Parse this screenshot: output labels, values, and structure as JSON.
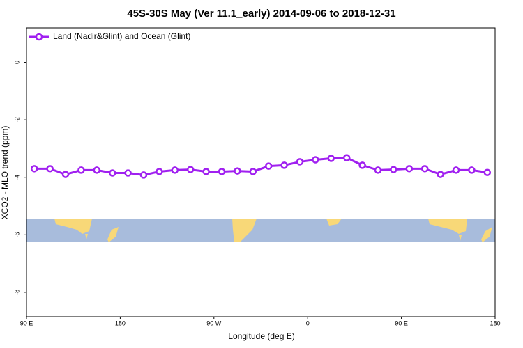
{
  "chart_data": {
    "type": "line",
    "title": "45S-30S May (Ver 11.1_early)   2014-09-06 to 2018-12-31",
    "xlabel": "Longitude (deg E)",
    "ylabel": "XCO2 - MLO trend (ppm)",
    "x": [
      97.5,
      112.5,
      127.5,
      142.5,
      157.5,
      172.5,
      187.5,
      202.5,
      217.5,
      232.5,
      247.5,
      262.5,
      277.5,
      292.5,
      307.5,
      322.5,
      337.5,
      352.5,
      367.5,
      382.5,
      397.5,
      412.5,
      427.5,
      442.5,
      457.5,
      472.5,
      487.5,
      502.5,
      517.5,
      532.5
    ],
    "series": [
      {
        "name": "Land (Nadir&Glint) and Ocean (Glint)",
        "color": "#a020f0",
        "values": [
          -3.7,
          -3.7,
          -3.9,
          -3.75,
          -3.75,
          -3.85,
          -3.85,
          -3.92,
          -3.8,
          -3.75,
          -3.73,
          -3.8,
          -3.8,
          -3.78,
          -3.8,
          -3.61,
          -3.58,
          -3.46,
          -3.39,
          -3.34,
          -3.32,
          -3.58,
          -3.75,
          -3.73,
          -3.7,
          -3.7,
          -3.9,
          -3.75,
          -3.75,
          -3.83
        ]
      }
    ],
    "xlim": [
      90,
      540
    ],
    "xticks": [
      {
        "value": 90,
        "label": "90 E"
      },
      {
        "value": 180,
        "label": "180"
      },
      {
        "value": 270,
        "label": "90 W"
      },
      {
        "value": 360,
        "label": "0"
      },
      {
        "value": 450,
        "label": "90 E"
      },
      {
        "value": 540,
        "label": "180"
      }
    ],
    "ylim": [
      -8.85,
      1.2
    ],
    "yticks": [
      0,
      -2,
      -4,
      -6,
      -8
    ],
    "legend": "top-left"
  }
}
